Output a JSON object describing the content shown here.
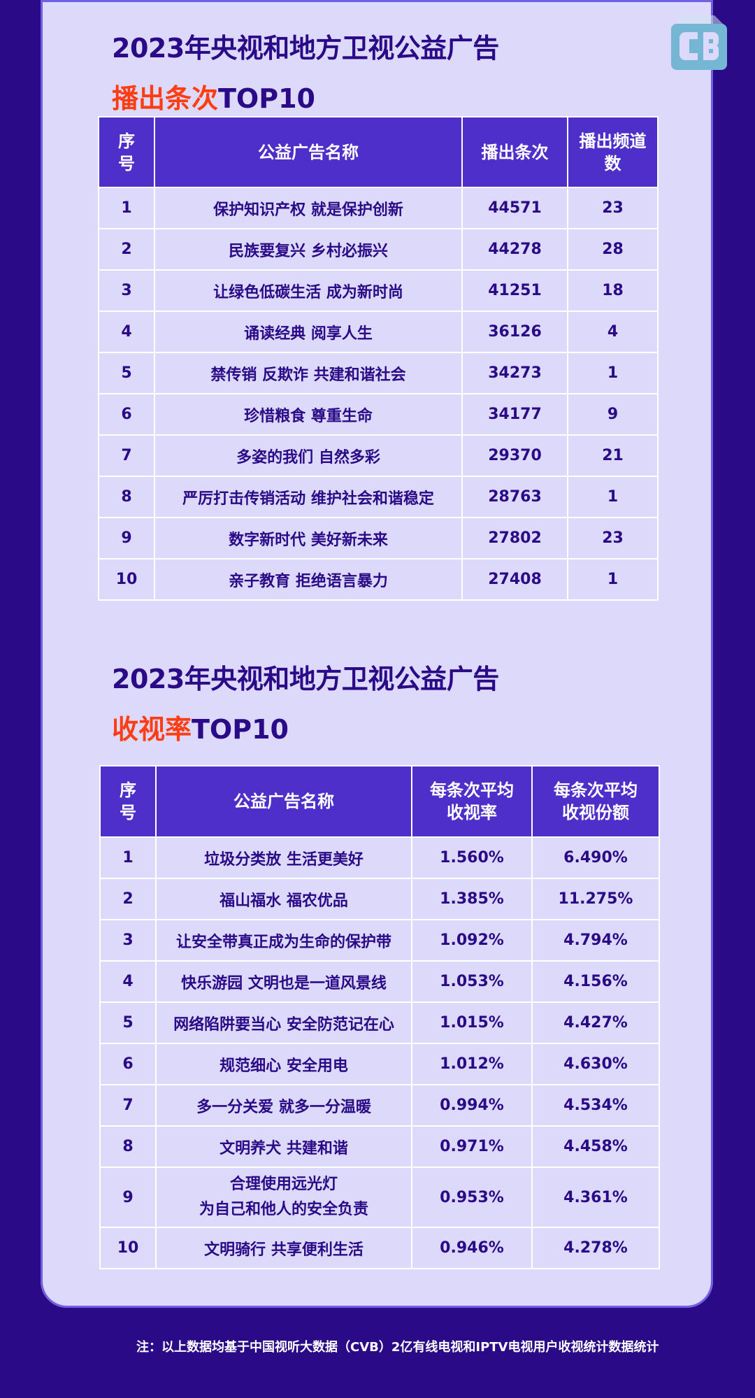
{
  "section1": {
    "title": "2023年央视和地方卫视公益广告",
    "subtitle_accent": "播出条次",
    "subtitle_rest": "TOP10",
    "headers": {
      "rank": "序号",
      "name": "公益广告名称",
      "col3": "播出条次",
      "col4": "播出频道数"
    },
    "rows": [
      {
        "rank": "1",
        "name": "保护知识产权 就是保护创新",
        "col3": "44571",
        "col4": "23"
      },
      {
        "rank": "2",
        "name": "民族要复兴 乡村必振兴",
        "col3": "44278",
        "col4": "28"
      },
      {
        "rank": "3",
        "name": "让绿色低碳生活 成为新时尚",
        "col3": "41251",
        "col4": "18"
      },
      {
        "rank": "4",
        "name": "诵读经典 阅享人生",
        "col3": "36126",
        "col4": "4"
      },
      {
        "rank": "5",
        "name": "禁传销 反欺诈 共建和谐社会",
        "col3": "34273",
        "col4": "1"
      },
      {
        "rank": "6",
        "name": "珍惜粮食 尊重生命",
        "col3": "34177",
        "col4": "9"
      },
      {
        "rank": "7",
        "name": "多姿的我们 自然多彩",
        "col3": "29370",
        "col4": "21"
      },
      {
        "rank": "8",
        "name": "严厉打击传销活动 维护社会和谐稳定",
        "col3": "28763",
        "col4": "1"
      },
      {
        "rank": "9",
        "name": "数字新时代 美好新未来",
        "col3": "27802",
        "col4": "23"
      },
      {
        "rank": "10",
        "name": "亲子教育 拒绝语言暴力",
        "col3": "27408",
        "col4": "1"
      }
    ]
  },
  "section2": {
    "title": "2023年央视和地方卫视公益广告",
    "subtitle_accent": "收视率",
    "subtitle_rest": "TOP10",
    "headers": {
      "rank": "序号",
      "name": "公益广告名称",
      "col3": "每条次平均收视率",
      "col4": "每条次平均收视份额"
    },
    "rows": [
      {
        "rank": "1",
        "name": "垃圾分类放 生活更美好",
        "col3": "1.560%",
        "col4": "6.490%"
      },
      {
        "rank": "2",
        "name": "福山福水 福农优品",
        "col3": "1.385%",
        "col4": "11.275%"
      },
      {
        "rank": "3",
        "name": "让安全带真正成为生命的保护带",
        "col3": "1.092%",
        "col4": "4.794%"
      },
      {
        "rank": "4",
        "name": "快乐游园 文明也是一道风景线",
        "col3": "1.053%",
        "col4": "4.156%"
      },
      {
        "rank": "5",
        "name": "网络陷阱要当心 安全防范记在心",
        "col3": "1.015%",
        "col4": "4.427%"
      },
      {
        "rank": "6",
        "name": "规范细心 安全用电",
        "col3": "1.012%",
        "col4": "4.630%"
      },
      {
        "rank": "7",
        "name": "多一分关爱 就多一分温暖",
        "col3": "0.994%",
        "col4": "4.534%"
      },
      {
        "rank": "8",
        "name": "文明养犬 共建和谐",
        "col3": "0.971%",
        "col4": "4.458%"
      },
      {
        "rank": "9",
        "name_line1": "合理使用远光灯",
        "name_line2": "为自己和他人的安全负责",
        "col3": "0.953%",
        "col4": "4.361%"
      },
      {
        "rank": "10",
        "name": "文明骑行 共享便利生活",
        "col3": "0.946%",
        "col4": "4.278%"
      }
    ]
  },
  "footnote": "注：以上数据均基于中国视听大数据（CVB）2亿有线电视和IPTV电视用户收视统计数据统计",
  "colors": {
    "background": "#2a0a86",
    "card": "#dcd9fb",
    "header": "#4f2fc9",
    "accent": "#ff3d12"
  },
  "icons": {
    "logo": "cvb-logo-icon"
  }
}
